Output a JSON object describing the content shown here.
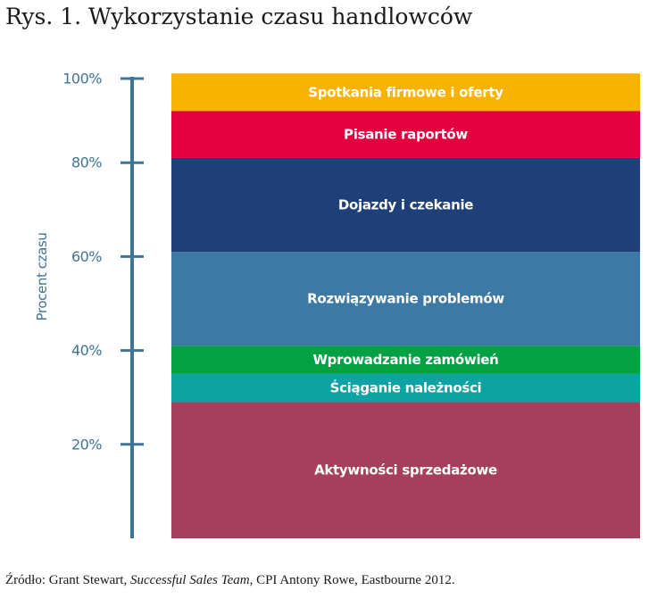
{
  "title": "Rys. 1. Wykorzystanie czasu handlowców",
  "source": {
    "prefix": "Źródło: Grant Stewart, ",
    "book": "Successful Sales Team",
    "suffix": ", CPI Antony Rowe, Eastbourne 2012."
  },
  "colors": {
    "axis": "#3f7494",
    "tick_label": "#3f7494",
    "segment_label": "#ffffff"
  },
  "chart_data": {
    "type": "bar",
    "stacked": true,
    "ylabel": "Procent czasu",
    "ylim": [
      0,
      100
    ],
    "yticks": [
      20,
      40,
      60,
      80,
      100
    ],
    "ytick_labels": [
      "20%",
      "40%",
      "60%",
      "80%",
      "100%"
    ],
    "series": [
      {
        "name": "Aktywności sprzedażowe",
        "value": 29,
        "color": "#a53f5d"
      },
      {
        "name": "Ściąganie należności",
        "value": 6,
        "color": "#0ea3a3"
      },
      {
        "name": "Wprowadzanie zamówień",
        "value": 6,
        "color": "#04a044"
      },
      {
        "name": "Rozwiązywanie problemów",
        "value": 20,
        "color": "#3c7aa5"
      },
      {
        "name": "Dojazdy i czekanie",
        "value": 20,
        "color": "#1e3f78"
      },
      {
        "name": "Pisanie raportów",
        "value": 10,
        "color": "#e2003f"
      },
      {
        "name": "Spotkania firmowe i oferty",
        "value": 8,
        "color": "#f8b300"
      }
    ]
  }
}
